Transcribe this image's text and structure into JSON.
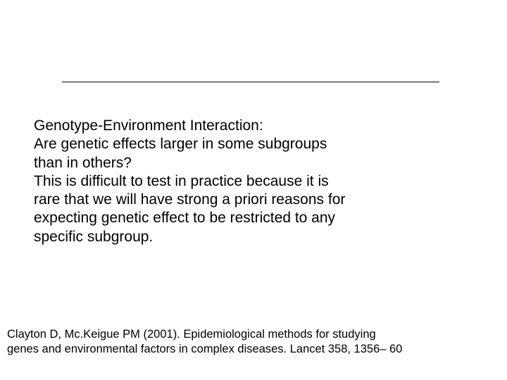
{
  "slide": {
    "divider_color": "#000000",
    "background_color": "#ffffff",
    "main_text": {
      "heading": "Genotype-Environment Interaction:",
      "line1": "Are genetic effects larger in some subgroups",
      "line2": "than in others?",
      "line3": "This is difficult to test in practice because it is",
      "line4": "rare that we will have strong a priori reasons for",
      "line5": "expecting genetic effect to be restricted to any",
      "line6": "specific subgroup.",
      "fontsize": 21,
      "color": "#000000"
    },
    "citation": {
      "line1": "Clayton D, Mc.Keigue PM (2001). Epidemiological methods for studying",
      "line2": "genes and environmental factors in complex diseases. Lancet 358, 1356– 60",
      "fontsize": 16.5,
      "color": "#000000"
    }
  }
}
